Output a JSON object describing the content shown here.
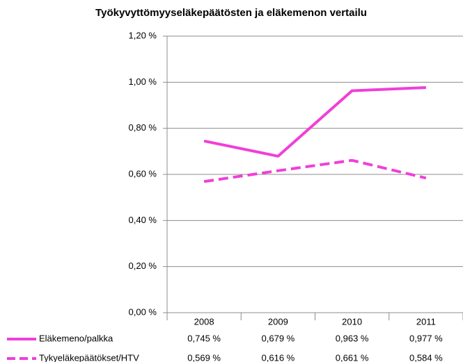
{
  "chart_data": {
    "type": "line",
    "title": "Työkyvyttömyyseläkepäätösten ja eläkemenon vertailu",
    "categories": [
      "2008",
      "2009",
      "2010",
      "2011"
    ],
    "series": [
      {
        "name": "Eläkemeno/palkka",
        "color": "#f03fd8",
        "line_style": "solid",
        "values": [
          0.745,
          0.679,
          0.963,
          0.977
        ],
        "value_labels": [
          "0,745 %",
          "0,679 %",
          "0,963 %",
          "0,977 %"
        ]
      },
      {
        "name": "Tykyeläkepäätökset/HTV",
        "color": "#f03fd8",
        "line_style": "dashed",
        "values": [
          0.569,
          0.616,
          0.661,
          0.584
        ],
        "value_labels": [
          "0,569 %",
          "0,616 %",
          "0,661 %",
          "0,584 %"
        ]
      }
    ],
    "ylim": [
      0,
      1.2
    ],
    "yticks": [
      {
        "value": 0,
        "label": "0,00 %"
      },
      {
        "value": 0.2,
        "label": "0,20 %"
      },
      {
        "value": 0.4,
        "label": "0,40 %"
      },
      {
        "value": 0.6,
        "label": "0,60 %"
      },
      {
        "value": 0.8,
        "label": "0,80 %"
      },
      {
        "value": 1.0,
        "label": "1,00 %"
      },
      {
        "value": 1.2,
        "label": "1,20 %"
      }
    ],
    "grid": true
  }
}
